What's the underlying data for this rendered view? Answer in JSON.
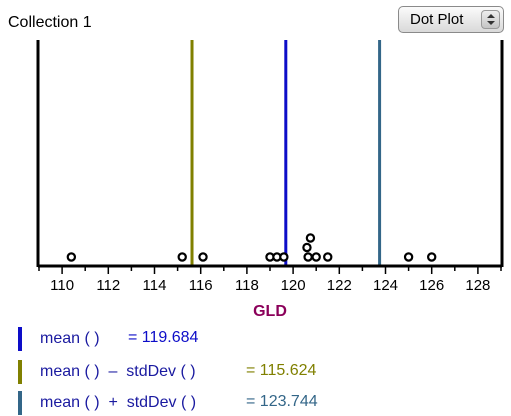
{
  "collection": {
    "title": "Collection 1"
  },
  "plot_type_menu": {
    "selected": "Dot Plot"
  },
  "colors": {
    "mean": "#0d0dc8",
    "mean_minus_sd": "#808000",
    "mean_plus_sd": "#336688",
    "axis_label": "#8b005a",
    "dot": "#000000"
  },
  "chart_data": {
    "type": "scatter",
    "xlabel": "GLD",
    "xlim": [
      109,
      129
    ],
    "xticks": [
      110,
      112,
      114,
      116,
      118,
      120,
      122,
      124,
      126,
      128
    ],
    "dots": [
      {
        "x": 110.4,
        "stack": 0
      },
      {
        "x": 115.2,
        "stack": 0
      },
      {
        "x": 116.1,
        "stack": 0
      },
      {
        "x": 119.0,
        "stack": 0
      },
      {
        "x": 119.3,
        "stack": 0
      },
      {
        "x": 119.6,
        "stack": 0
      },
      {
        "x": 120.65,
        "stack": 0
      },
      {
        "x": 120.6,
        "stack": 1
      },
      {
        "x": 120.75,
        "stack": 2
      },
      {
        "x": 121.0,
        "stack": 0
      },
      {
        "x": 121.5,
        "stack": 0
      },
      {
        "x": 125.0,
        "stack": 0
      },
      {
        "x": 126.0,
        "stack": 0
      }
    ],
    "lines": [
      {
        "key": "mean",
        "x": 119.684
      },
      {
        "key": "mean_minus_sd",
        "x": 115.624
      },
      {
        "key": "mean_plus_sd",
        "x": 123.744
      }
    ]
  },
  "legend": [
    {
      "formula": "mean ( )",
      "value": "= 119.684",
      "color": "#0d0dc8"
    },
    {
      "formula": "mean ( )  –  stdDev ( )",
      "value": "= 115.624",
      "color": "#808000"
    },
    {
      "formula": "mean ( )  +  stdDev ( )",
      "value": "= 123.744",
      "color": "#336688"
    }
  ]
}
